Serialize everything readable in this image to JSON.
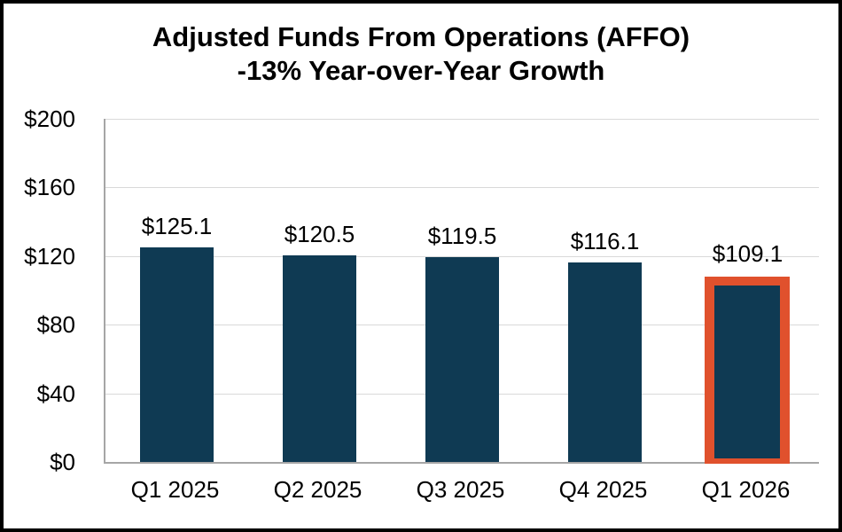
{
  "title": {
    "line1": "Adjusted Funds From Operations (AFFO)",
    "line2": "-13% Year-over-Year Growth"
  },
  "chart_data": {
    "type": "bar",
    "title": "Adjusted Funds From Operations (AFFO)",
    "subtitle": "-13% Year-over-Year Growth",
    "categories": [
      "Q1 2025",
      "Q2 2025",
      "Q3 2025",
      "Q4 2025",
      "Q1 2026"
    ],
    "values": [
      125.1,
      120.5,
      119.5,
      116.1,
      109.1
    ],
    "value_labels": [
      "$125.1",
      "$120.5",
      "$119.5",
      "$116.1",
      "$109.1"
    ],
    "y_ticks": [
      "$200",
      "$160",
      "$120",
      "$80",
      "$40",
      "$0"
    ],
    "ylim": [
      0,
      200
    ],
    "y_tick_interval": 40,
    "grid": true,
    "legend": "none",
    "highlight_index": 4,
    "bar_color": "#0F3A53",
    "highlight_border_color": "#E0512D",
    "gridline_color": "#D9D9D9",
    "axis_line_color": "#A6A6A6"
  }
}
